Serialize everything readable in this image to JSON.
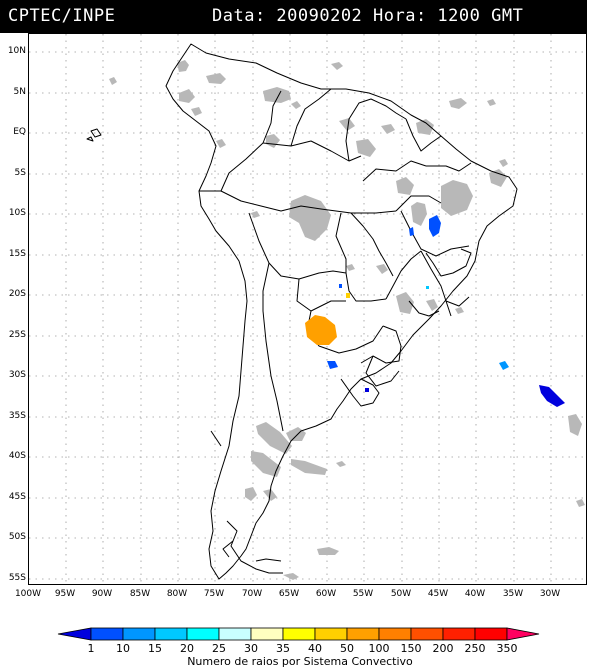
{
  "header": {
    "source": "CPTEC/INPE",
    "datetime": "Data: 20090202 Hora: 1200 GMT"
  },
  "lat_labels": [
    "10N",
    "5N",
    "EQ",
    "5S",
    "10S",
    "15S",
    "20S",
    "25S",
    "30S",
    "35S",
    "40S",
    "45S",
    "50S",
    "55S"
  ],
  "lon_labels": [
    "100W",
    "95W",
    "90W",
    "85W",
    "80W",
    "75W",
    "70W",
    "65W",
    "60W",
    "55W",
    "50W",
    "45W",
    "40W",
    "35W",
    "30W"
  ],
  "legend": {
    "values": [
      "1",
      "10",
      "15",
      "20",
      "25",
      "30",
      "35",
      "40",
      "50",
      "100",
      "150",
      "200",
      "250",
      "350"
    ],
    "colors": [
      "#0000dd",
      "#0050ff",
      "#0096ff",
      "#00c8ff",
      "#00ffff",
      "#c8ffff",
      "#ffffc0",
      "#ffff00",
      "#ffd000",
      "#ffa000",
      "#ff8000",
      "#ff5000",
      "#ff2000",
      "#ff0000",
      "#ff0060"
    ],
    "title": "Numero de raios por Sistema Convectivo"
  },
  "colors": {
    "header_bg": "#000000",
    "header_text": "#ffffff",
    "cloud_gray": "#b8b8b8",
    "grid": "#9a9a9a"
  }
}
